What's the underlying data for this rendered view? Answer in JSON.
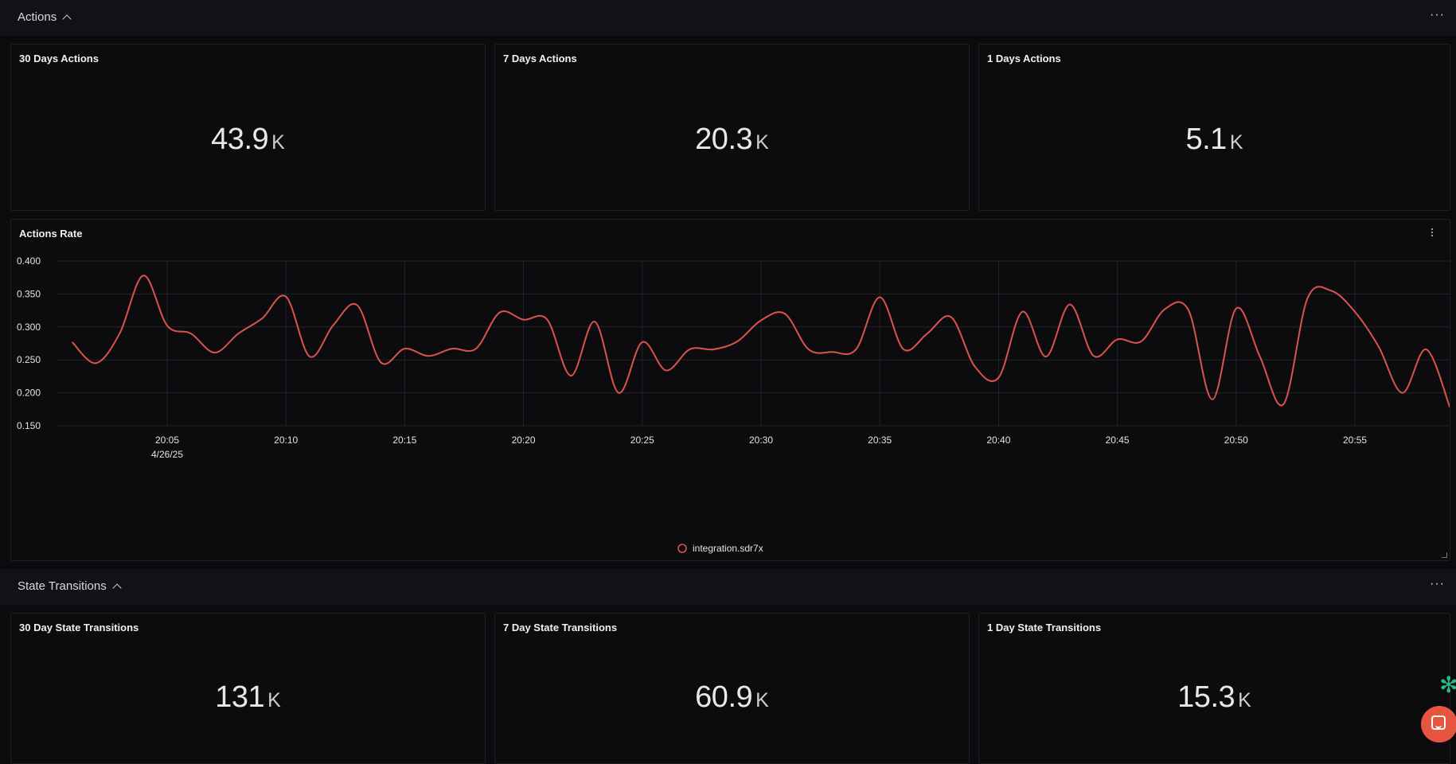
{
  "sections": {
    "actions": {
      "title": "Actions"
    },
    "state": {
      "title": "State Transitions"
    }
  },
  "actions_stats": [
    {
      "title": "30 Days Actions",
      "value": "43.9",
      "unit": "K"
    },
    {
      "title": "7 Days Actions",
      "value": "20.3",
      "unit": "K"
    },
    {
      "title": "1 Days Actions",
      "value": "5.1",
      "unit": "K"
    }
  ],
  "state_stats": [
    {
      "title": "30 Day State Transitions",
      "value": "131",
      "unit": "K"
    },
    {
      "title": "7 Day State Transitions",
      "value": "60.9",
      "unit": "K"
    },
    {
      "title": "1 Day State Transitions",
      "value": "15.3",
      "unit": "K"
    }
  ],
  "icons": {
    "section_menu": "more-horizontal-icon",
    "panel_menu": "more-vertical-icon",
    "chat": "chat-icon",
    "assistant": "assistant-icon"
  },
  "chart_data": {
    "type": "line",
    "title": "Actions Rate",
    "xlabel": "",
    "ylabel": "",
    "y_ticks": [
      "0.400",
      "0.350",
      "0.300",
      "0.250",
      "0.200",
      "0.150"
    ],
    "ylim": [
      0.15,
      0.4
    ],
    "grid": true,
    "legend_position": "bottom-center",
    "x_ticks": [
      {
        "minute": 5,
        "label": "20:05",
        "sublabel": "4/26/25"
      },
      {
        "minute": 10,
        "label": "20:10"
      },
      {
        "minute": 15,
        "label": "20:15"
      },
      {
        "minute": 20,
        "label": "20:20"
      },
      {
        "minute": 25,
        "label": "20:25"
      },
      {
        "minute": 30,
        "label": "20:30"
      },
      {
        "minute": 35,
        "label": "20:35"
      },
      {
        "minute": 40,
        "label": "20:40"
      },
      {
        "minute": 45,
        "label": "20:45"
      },
      {
        "minute": 50,
        "label": "20:50"
      },
      {
        "minute": 55,
        "label": "20:55"
      }
    ],
    "series": [
      {
        "name": "integration.sdr7x",
        "color": "#d9534f",
        "points": [
          [
            1,
            0.277
          ],
          [
            2,
            0.245
          ],
          [
            3,
            0.29
          ],
          [
            4,
            0.378
          ],
          [
            5,
            0.302
          ],
          [
            6,
            0.29
          ],
          [
            7,
            0.261
          ],
          [
            8,
            0.29
          ],
          [
            9,
            0.313
          ],
          [
            10,
            0.346
          ],
          [
            11,
            0.255
          ],
          [
            12,
            0.303
          ],
          [
            13,
            0.333
          ],
          [
            14,
            0.246
          ],
          [
            15,
            0.267
          ],
          [
            16,
            0.256
          ],
          [
            17,
            0.267
          ],
          [
            18,
            0.267
          ],
          [
            19,
            0.322
          ],
          [
            20,
            0.311
          ],
          [
            21,
            0.311
          ],
          [
            22,
            0.226
          ],
          [
            23,
            0.308
          ],
          [
            24,
            0.2
          ],
          [
            25,
            0.277
          ],
          [
            26,
            0.234
          ],
          [
            27,
            0.266
          ],
          [
            28,
            0.266
          ],
          [
            29,
            0.278
          ],
          [
            30,
            0.31
          ],
          [
            31,
            0.32
          ],
          [
            32,
            0.266
          ],
          [
            33,
            0.262
          ],
          [
            34,
            0.266
          ],
          [
            35,
            0.345
          ],
          [
            36,
            0.266
          ],
          [
            37,
            0.29
          ],
          [
            38,
            0.315
          ],
          [
            39,
            0.24
          ],
          [
            40,
            0.223
          ],
          [
            41,
            0.323
          ],
          [
            42,
            0.255
          ],
          [
            43,
            0.334
          ],
          [
            44,
            0.256
          ],
          [
            45,
            0.281
          ],
          [
            46,
            0.278
          ],
          [
            47,
            0.327
          ],
          [
            48,
            0.325
          ],
          [
            49,
            0.19
          ],
          [
            50,
            0.328
          ],
          [
            51,
            0.255
          ],
          [
            52,
            0.183
          ],
          [
            53,
            0.343
          ],
          [
            54,
            0.355
          ],
          [
            55,
            0.323
          ],
          [
            56,
            0.27
          ],
          [
            57,
            0.2
          ],
          [
            58,
            0.266
          ],
          [
            59,
            0.178
          ]
        ]
      }
    ]
  }
}
